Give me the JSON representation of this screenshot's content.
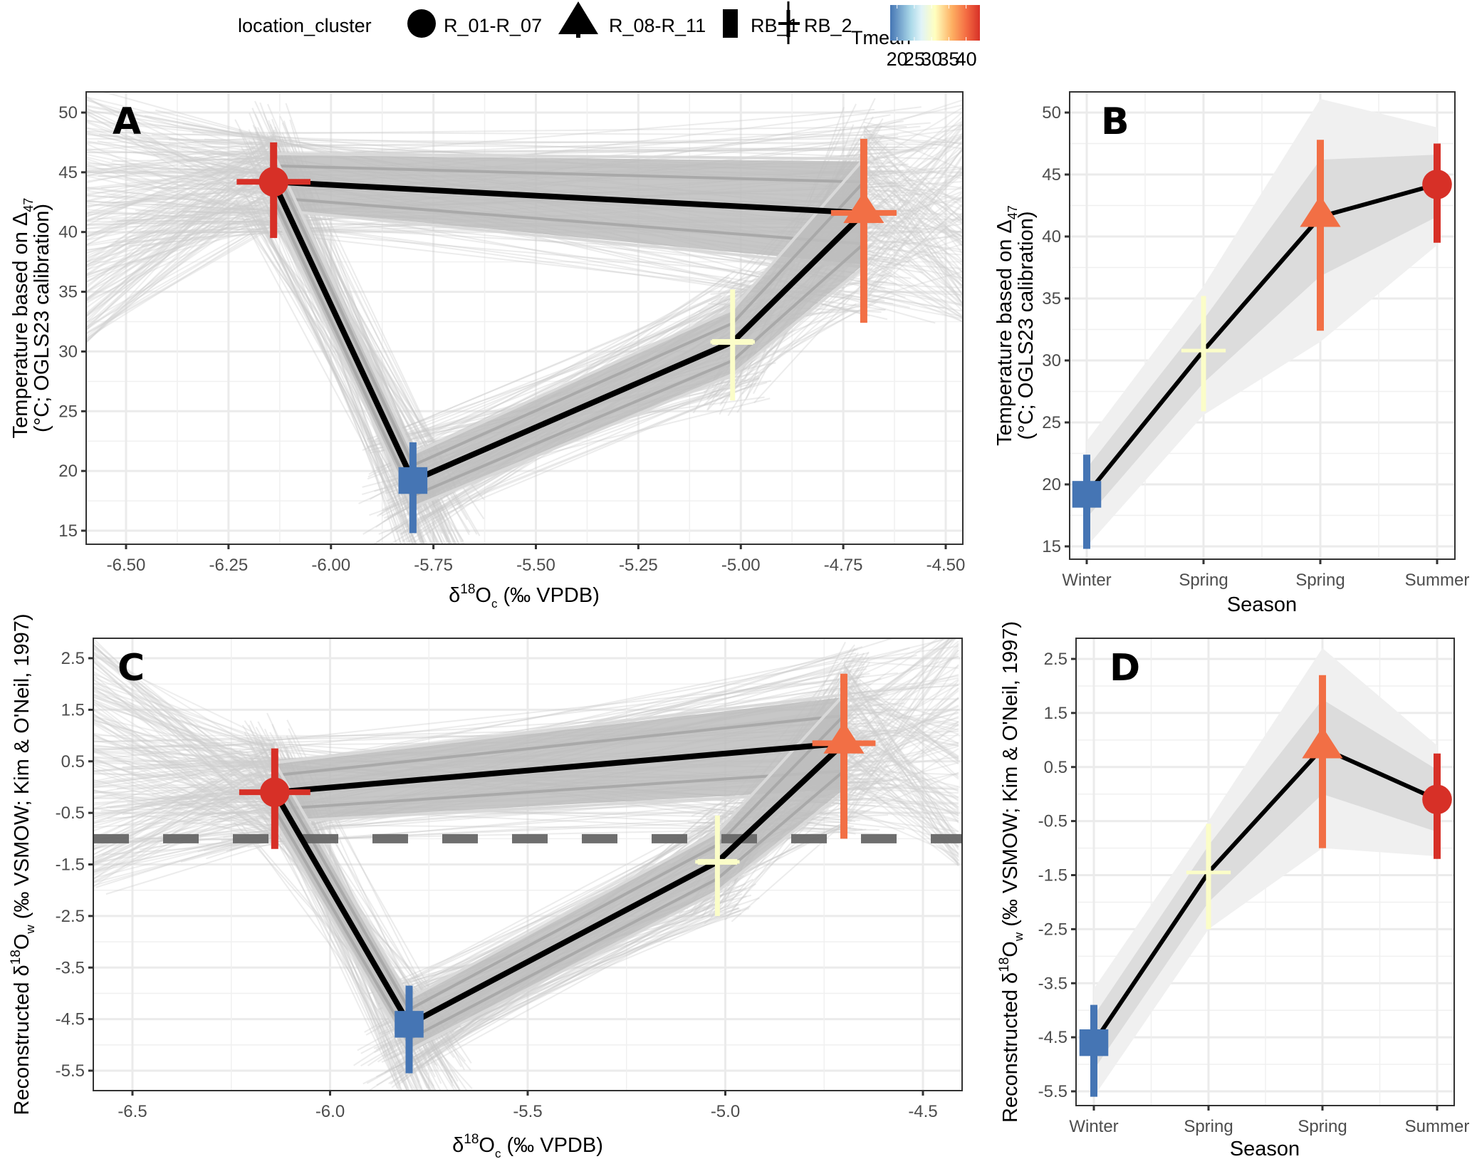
{
  "legend": {
    "shape_title": "location_cluster",
    "shape_items": [
      {
        "label": "R_01-R_07",
        "shape": "circle"
      },
      {
        "label": "R_08-R_11",
        "shape": "triangle"
      },
      {
        "label": "RB_1",
        "shape": "square"
      },
      {
        "label": "RB_2",
        "shape": "cross"
      }
    ],
    "color_title": "Tmean",
    "colorbar": {
      "min": 18,
      "max": 44,
      "ticks": [
        20,
        25,
        30,
        35,
        40
      ],
      "tick_labels": [
        "20",
        "25",
        "30",
        "35",
        "40"
      ],
      "stops": [
        {
          "value": 18,
          "color": "#4575b4"
        },
        {
          "value": 24,
          "color": "#abd9e9"
        },
        {
          "value": 27,
          "color": "#e0f3f8"
        },
        {
          "value": 31,
          "color": "#ffffbf"
        },
        {
          "value": 36,
          "color": "#fdae61"
        },
        {
          "value": 40,
          "color": "#f46d43"
        },
        {
          "value": 44,
          "color": "#d73027"
        }
      ]
    }
  },
  "chart_data": [
    {
      "panel": "A",
      "type": "scatter",
      "title": "",
      "xlabel": "δ18Oc (‰ VPDB)",
      "xlabel_parts": {
        "pre": "δ",
        "sup": "18",
        "base": "O",
        "sub": "c",
        "post": " (‰ VPDB)"
      },
      "ylabel_lines": [
        "Temperature based on Δ47",
        "(°C; OGLS23 calibration)"
      ],
      "ylabel_parts": {
        "line1_pre": "Temperature based on Δ",
        "line1_sub": "47",
        "line2": "(°C; OGLS23 calibration)"
      },
      "xlim": [
        -6.6,
        -4.41
      ],
      "ylim": [
        13.5,
        51.5
      ],
      "xticks": [
        -6.5,
        -6.25,
        -6.0,
        -5.75,
        -5.5,
        -5.25,
        -5.0,
        -4.75,
        -4.5
      ],
      "xtick_labels": [
        "-6.50",
        "-6.25",
        "-6.00",
        "-5.75",
        "-5.50",
        "-5.25",
        "-5.00",
        "-4.75",
        "-4.50"
      ],
      "yticks": [
        15,
        20,
        25,
        30,
        35,
        40,
        45,
        50
      ],
      "ytick_labels": [
        "15",
        "20",
        "25",
        "30",
        "35",
        "40",
        "45",
        "50"
      ],
      "grid": true,
      "points": [
        {
          "cluster": "R_01-R_07",
          "shape": "circle",
          "x": -6.14,
          "y": 44.2,
          "xerr": [
            -6.23,
            -6.05
          ],
          "yerr": [
            39.5,
            47.5
          ],
          "tmean": 44,
          "color": "#d73027"
        },
        {
          "cluster": "RB_1",
          "shape": "square",
          "x": -5.8,
          "y": 19.2,
          "xerr": null,
          "yerr": [
            14.8,
            22.4
          ],
          "tmean": 19,
          "color": "#4575b4"
        },
        {
          "cluster": "RB_2",
          "shape": "cross",
          "x": -5.02,
          "y": 30.8,
          "xerr": [
            -5.07,
            -4.97
          ],
          "yerr": [
            25.9,
            35.2
          ],
          "tmean": 31,
          "color": "#fbfdc8"
        },
        {
          "cluster": "R_08-R_11",
          "shape": "triangle",
          "x": -4.7,
          "y": 41.6,
          "xerr": [
            -4.78,
            -4.62
          ],
          "yerr": [
            32.4,
            47.8
          ],
          "tmean": 41,
          "color": "#f26f45"
        }
      ],
      "path_order": [
        "R_01-R_07",
        "R_08-R_11",
        "RB_2",
        "RB_1",
        "R_01-R_07"
      ],
      "hline": null
    },
    {
      "panel": "B",
      "type": "line",
      "xlabel": "Season",
      "ylabel_lines": [
        "Temperature based on Δ47",
        "(°C; OGLS23 calibration)"
      ],
      "ylabel_parts": {
        "line1_pre": "Temperature based on Δ",
        "line1_sub": "47",
        "line2": "(°C; OGLS23 calibration)"
      },
      "categories": [
        "Winter",
        "Spring",
        "Spring",
        "Summer"
      ],
      "ylim": [
        13.5,
        51.5
      ],
      "yticks": [
        15,
        20,
        25,
        30,
        35,
        40,
        45,
        50
      ],
      "ytick_labels": [
        "15",
        "20",
        "25",
        "30",
        "35",
        "40",
        "45",
        "50"
      ],
      "grid": true,
      "series": [
        {
          "name": "mean",
          "values": [
            19.2,
            30.8,
            41.6,
            44.2
          ]
        }
      ],
      "ribbon_inner": {
        "lower": [
          17.3,
          28.2,
          36.8,
          41.6
        ],
        "upper": [
          21.3,
          33.3,
          46.2,
          46.6
        ]
      },
      "ribbon_outer": {
        "lower": [
          15.0,
          25.6,
          31.5,
          39.3
        ],
        "upper": [
          23.5,
          36.0,
          51.1,
          48.8
        ]
      },
      "points": [
        {
          "cluster": "RB_1",
          "shape": "square",
          "y": 19.2,
          "yerr": [
            14.8,
            22.4
          ],
          "color": "#4575b4"
        },
        {
          "cluster": "RB_2",
          "shape": "cross",
          "y": 30.8,
          "yerr": [
            25.9,
            35.2
          ],
          "color": "#fbfdc8"
        },
        {
          "cluster": "R_08-R_11",
          "shape": "triangle",
          "y": 41.6,
          "yerr": [
            32.4,
            47.8
          ],
          "color": "#f26f45"
        },
        {
          "cluster": "R_01-R_07",
          "shape": "circle",
          "y": 44.2,
          "yerr": [
            39.5,
            47.5
          ],
          "color": "#d73027"
        }
      ]
    },
    {
      "panel": "C",
      "type": "scatter",
      "xlabel": "δ18Oc (‰ VPDB)",
      "xlabel_parts": {
        "pre": "δ",
        "sup": "18",
        "base": "O",
        "sub": "c",
        "post": " (‰ VPDB)"
      },
      "ylabel_lines": [
        "Reconstructed δ18Ow (‰ VSMOW; Kim & O'Neil, 1997)"
      ],
      "ylabel_parts": {
        "pre": "Reconstructed δ",
        "sup": "18",
        "base": "O",
        "sub": "w",
        "post": " (‰ VSMOW; Kim & O'Neil, 1997)"
      },
      "xlim": [
        -6.6,
        -4.41
      ],
      "ylim": [
        -5.9,
        2.9
      ],
      "xticks": [
        -6.5,
        -6.0,
        -5.5,
        -5.0,
        -4.5
      ],
      "xtick_labels": [
        "-6.5",
        "-6.0",
        "-5.5",
        "-5.0",
        "-4.5"
      ],
      "yticks": [
        -5.5,
        -4.5,
        -3.5,
        -2.5,
        -1.5,
        -0.5,
        0.5,
        1.5,
        2.5
      ],
      "ytick_labels": [
        "-5.5",
        "-4.5",
        "-3.5",
        "-2.5",
        "-1.5",
        "-0.5",
        "0.5",
        "1.5",
        "2.5"
      ],
      "grid": true,
      "points": [
        {
          "cluster": "R_01-R_07",
          "shape": "circle",
          "x": -6.14,
          "y": -0.1,
          "xerr": [
            -6.23,
            -6.05
          ],
          "yerr": [
            -1.2,
            0.75
          ],
          "tmean": 44,
          "color": "#d73027"
        },
        {
          "cluster": "RB_1",
          "shape": "square",
          "x": -5.8,
          "y": -4.6,
          "xerr": null,
          "yerr": [
            -5.55,
            -3.85
          ],
          "tmean": 19,
          "color": "#4575b4"
        },
        {
          "cluster": "RB_2",
          "shape": "cross",
          "x": -5.02,
          "y": -1.45,
          "xerr": [
            -5.07,
            -4.97
          ],
          "yerr": [
            -2.5,
            -0.55
          ],
          "tmean": 31,
          "color": "#fbfdc8"
        },
        {
          "cluster": "R_08-R_11",
          "shape": "triangle",
          "x": -4.7,
          "y": 0.85,
          "xerr": [
            -4.78,
            -4.62
          ],
          "yerr": [
            -1.0,
            2.2
          ],
          "tmean": 41,
          "color": "#f26f45"
        }
      ],
      "path_order": [
        "R_01-R_07",
        "R_08-R_11",
        "RB_2",
        "RB_1",
        "R_01-R_07"
      ],
      "hline": {
        "y": -1.0,
        "style": "dashed",
        "color": "#666666"
      }
    },
    {
      "panel": "D",
      "type": "line",
      "xlabel": "Season",
      "ylabel_parts": {
        "pre": "Reconstructed δ",
        "sup": "18",
        "base": "O",
        "sub": "w",
        "post": " (‰ VSMOW; Kim & O'Neil, 1997)"
      },
      "categories": [
        "Winter",
        "Spring",
        "Spring",
        "Summer"
      ],
      "ylim": [
        -5.9,
        2.9
      ],
      "yticks": [
        -5.5,
        -4.5,
        -3.5,
        -2.5,
        -1.5,
        -0.5,
        0.5,
        1.5,
        2.5
      ],
      "ytick_labels": [
        "-5.5",
        "-4.5",
        "-3.5",
        "-2.5",
        "-1.5",
        "-0.5",
        "0.5",
        "1.5",
        "2.5"
      ],
      "grid": true,
      "series": [
        {
          "name": "mean",
          "values": [
            -4.6,
            -1.45,
            0.85,
            -0.1
          ]
        }
      ],
      "ribbon_inner": {
        "lower": [
          -5.1,
          -2.0,
          0.0,
          -0.7
        ],
        "upper": [
          -4.1,
          -0.95,
          1.75,
          0.45
        ]
      },
      "ribbon_outer": {
        "lower": [
          -5.6,
          -2.5,
          -1.0,
          -1.15
        ],
        "upper": [
          -3.6,
          -0.5,
          2.7,
          0.9
        ]
      },
      "points": [
        {
          "cluster": "RB_1",
          "shape": "square",
          "y": -4.6,
          "yerr": [
            -5.6,
            -3.9
          ],
          "color": "#4575b4"
        },
        {
          "cluster": "RB_2",
          "shape": "cross",
          "y": -1.45,
          "yerr": [
            -2.5,
            -0.55
          ],
          "color": "#fbfdc8"
        },
        {
          "cluster": "R_08-R_11",
          "shape": "triangle",
          "y": 0.85,
          "yerr": [
            -1.0,
            2.2
          ],
          "color": "#f26f45"
        },
        {
          "cluster": "R_01-R_07",
          "shape": "circle",
          "y": -0.1,
          "yerr": [
            -1.2,
            0.75
          ],
          "color": "#d73027"
        }
      ]
    }
  ]
}
